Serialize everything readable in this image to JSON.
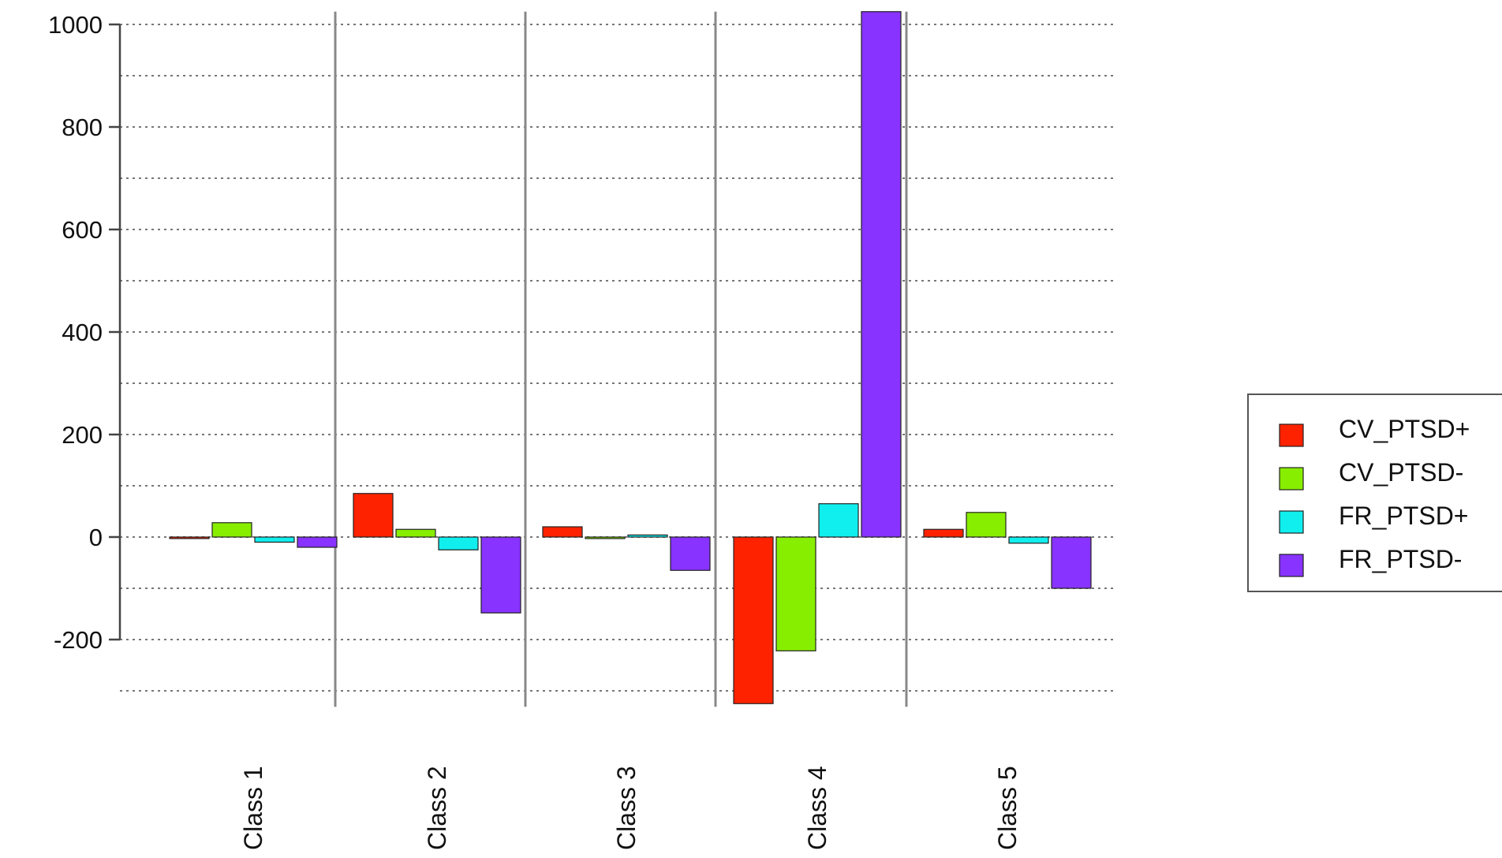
{
  "chart_data": {
    "type": "bar",
    "title": "",
    "xlabel": "",
    "ylabel": "",
    "categories": [
      "Class 1",
      "Class 2",
      "Class 3",
      "Class 4",
      "Class 5"
    ],
    "series": [
      {
        "name": "CV_PTSD+",
        "color": "#ff2200",
        "values": [
          -3,
          85,
          20,
          -325,
          15
        ]
      },
      {
        "name": "CV_PTSD-",
        "color": "#88ee00",
        "values": [
          28,
          15,
          -3,
          -222,
          48
        ]
      },
      {
        "name": "FR_PTSD+",
        "color": "#11eeee",
        "values": [
          -10,
          -25,
          4,
          65,
          -12
        ]
      },
      {
        "name": "FR_PTSD-",
        "color": "#8833ff",
        "values": [
          -20,
          -148,
          -65,
          1025,
          -100
        ]
      }
    ],
    "ylim": [
      -325,
      1025
    ],
    "yticks": [
      -200,
      0,
      200,
      400,
      600,
      800,
      1000
    ],
    "ytick_labels": [
      "-200",
      "0",
      "200",
      "400",
      "600",
      "800",
      "1000"
    ],
    "grid": true,
    "legend_placement": "right"
  }
}
